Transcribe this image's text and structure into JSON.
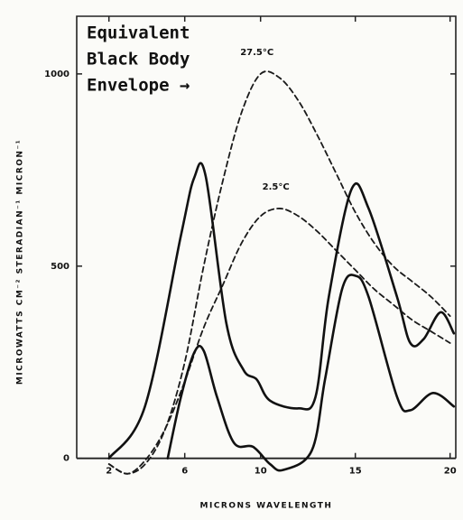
{
  "chart_data": {
    "type": "line",
    "xlabel": "MICRONS WAVELENGTH",
    "ylabel": "MICROWATTS CM⁻² STERADIAN⁻¹ MICRON⁻¹",
    "annotation": [
      "Equivalent",
      "Black Body",
      "Envelope →"
    ],
    "xlim": [
      0.3,
      20.3
    ],
    "ylim": [
      -50,
      1150
    ],
    "xticks": [
      2,
      6,
      10,
      15,
      20
    ],
    "yticks": [
      0,
      500,
      1000
    ],
    "series": [
      {
        "name": "27.5°C",
        "color": "#1a1a1a",
        "dashed": true,
        "x": [
          2,
          3,
          4,
          5,
          6,
          7,
          8,
          9,
          10,
          11,
          12,
          13,
          14,
          15,
          16,
          17,
          18,
          19,
          20
        ],
        "values": [
          -15,
          -40,
          -10,
          80,
          250,
          500,
          720,
          900,
          1000,
          990,
          930,
          840,
          740,
          640,
          560,
          500,
          460,
          420,
          370
        ]
      },
      {
        "name": "2.5°C",
        "color": "#1a1a1a",
        "dashed": true,
        "x": [
          2,
          3,
          4,
          5,
          6,
          7,
          8,
          9,
          10,
          11,
          12,
          13,
          14,
          15,
          16,
          17,
          18,
          19,
          20
        ],
        "values": [
          -15,
          -40,
          0,
          80,
          200,
          340,
          450,
          560,
          630,
          650,
          630,
          590,
          540,
          490,
          440,
          400,
          360,
          330,
          300
        ]
      },
      {
        "color": "#111111",
        "dashed": false,
        "x": [
          2,
          3.9,
          5.8,
          6.5,
          7.1,
          8.2,
          9.1,
          9.8,
          10.5,
          12,
          12.9,
          13.6,
          14.8,
          15.7,
          17.2,
          17.9,
          18.6,
          19.5,
          20.2
        ],
        "values": [
          0,
          135,
          580,
          730,
          735,
          350,
          230,
          205,
          150,
          130,
          160,
          420,
          700,
          650,
          420,
          300,
          310,
          380,
          325
        ]
      },
      {
        "color": "#111111",
        "dashed": false,
        "x": [
          5.1,
          5.8,
          6.5,
          7,
          7.7,
          8.6,
          9.6,
          10.5,
          11.2,
          12.7,
          13.4,
          14.3,
          15,
          15.7,
          17.2,
          17.9,
          19.1,
          20.2
        ],
        "values": [
          0,
          160,
          275,
          280,
          160,
          40,
          30,
          -15,
          -30,
          20,
          205,
          440,
          475,
          420,
          160,
          125,
          170,
          135
        ]
      }
    ]
  }
}
